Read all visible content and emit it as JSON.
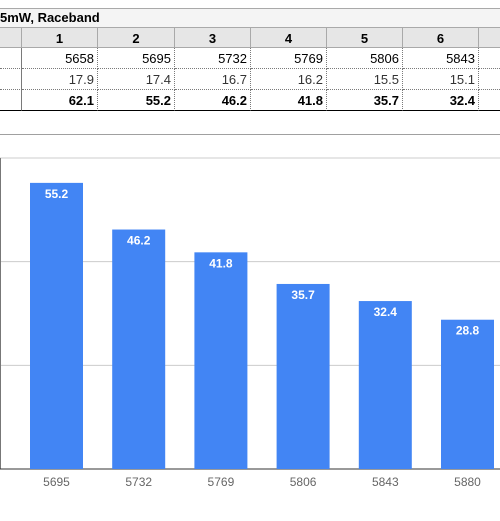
{
  "sheet": {
    "title": "5mW, Raceband",
    "channel_headers": [
      "",
      "1",
      "2",
      "3",
      "4",
      "5",
      "6"
    ],
    "rows": {
      "freq": [
        "",
        "5658",
        "5695",
        "5732",
        "5769",
        "5806",
        "5843"
      ],
      "mw": [
        "",
        "17.9",
        "17.4",
        "16.7",
        "16.2",
        "15.5",
        "15.1"
      ],
      "pct": [
        "",
        "62.1",
        "55.2",
        "46.2",
        "41.8",
        "35.7",
        "32.4"
      ]
    }
  },
  "chart_data": {
    "type": "bar",
    "categories": [
      "5695",
      "5732",
      "5769",
      "5806",
      "5843",
      "5880"
    ],
    "values": [
      55.2,
      46.2,
      41.8,
      35.7,
      32.4,
      28.8
    ],
    "title": "",
    "xlabel": "",
    "ylabel": "",
    "grid": true,
    "bar_color": "#4285f4",
    "label_color": "#ffffff"
  }
}
